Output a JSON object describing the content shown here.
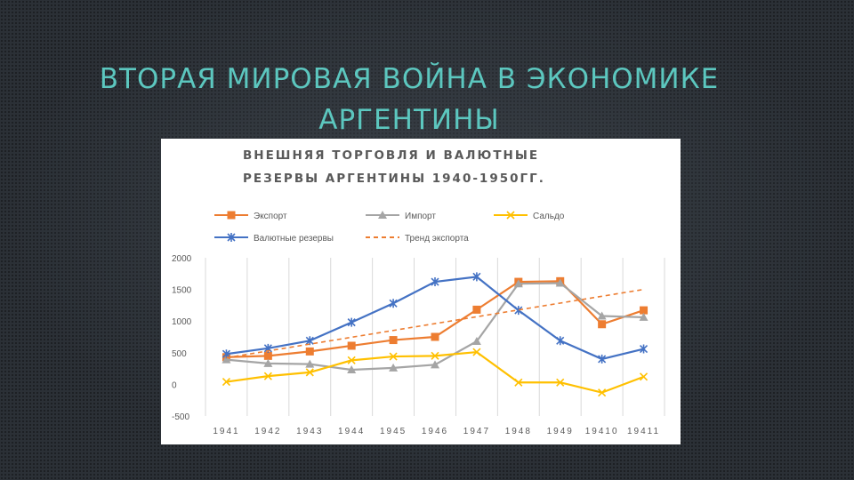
{
  "slide": {
    "title_line1": "ВТОРАЯ МИРОВАЯ ВОЙНА В ЭКОНОМИКЕ",
    "title_line2": "АРГЕНТИНЫ"
  },
  "chart_data": {
    "type": "line",
    "title_line1": "ВНЕШНЯЯ ТОРГОВЛЯ И ВАЛЮТНЫЕ",
    "title_line2": "РЕЗЕРВЫ АРГЕНТИНЫ 1940-1950ГГ.",
    "categories": [
      "1941",
      "1942",
      "1943",
      "1944",
      "1945",
      "1946",
      "1947",
      "1948",
      "1949",
      "19410",
      "19411"
    ],
    "y_ticks": [
      "2000",
      "1500",
      "1000",
      "500",
      "0",
      "-500"
    ],
    "tick_values": [
      2000,
      1500,
      1000,
      500,
      0,
      -500
    ],
    "ylim": [
      -500,
      2000
    ],
    "grid": "vertical",
    "legend_position": "top",
    "series": [
      {
        "name": "Экспорт",
        "color": "#ed7d31",
        "marker": "square",
        "style": "solid",
        "values": [
          430,
          450,
          520,
          610,
          700,
          750,
          1180,
          1620,
          1630,
          950,
          1170
        ]
      },
      {
        "name": "Импорт",
        "color": "#a5a5a5",
        "marker": "triangle",
        "style": "solid",
        "values": [
          390,
          330,
          320,
          230,
          260,
          310,
          680,
          1590,
          1600,
          1080,
          1060
        ]
      },
      {
        "name": "Сальдо",
        "color": "#ffc000",
        "marker": "x",
        "style": "solid",
        "values": [
          40,
          130,
          190,
          380,
          440,
          450,
          510,
          30,
          30,
          -130,
          120
        ]
      },
      {
        "name": "Валютные резервы",
        "color": "#4472c4",
        "marker": "star",
        "style": "solid",
        "values": [
          480,
          570,
          690,
          980,
          1280,
          1620,
          1700,
          1170,
          690,
          400,
          560
        ]
      },
      {
        "name": "Тренд экспорта",
        "color": "#ed7d31",
        "marker": "none",
        "style": "dashed",
        "values": [
          420,
          528,
          636,
          744,
          852,
          960,
          1068,
          1176,
          1284,
          1392,
          1500
        ]
      }
    ]
  }
}
